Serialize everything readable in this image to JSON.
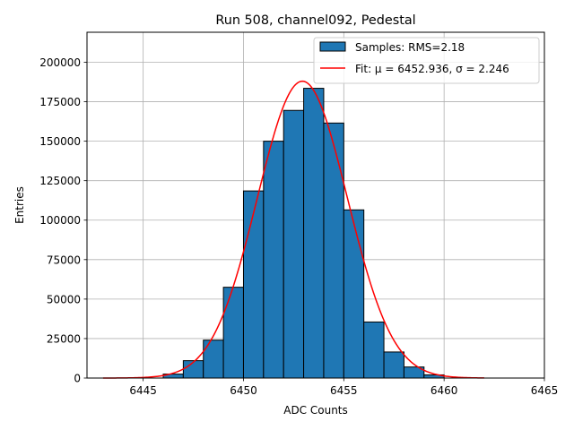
{
  "chart_data": {
    "type": "bar",
    "title": "Run 508, channel092, Pedestal",
    "xlabel": "ADC Counts",
    "ylabel": "Entries",
    "xlim": [
      6442.2,
      6465.0
    ],
    "ylim": [
      0,
      219000
    ],
    "xticks": [
      6445,
      6450,
      6455,
      6460,
      6465
    ],
    "xtick_labels": [
      "6445",
      "6450",
      "6455",
      "6460",
      "6465"
    ],
    "yticks": [
      0,
      25000,
      50000,
      75000,
      100000,
      125000,
      150000,
      175000,
      200000
    ],
    "ytick_labels": [
      "0",
      "25000",
      "50000",
      "75000",
      "100000",
      "125000",
      "150000",
      "175000",
      "200000"
    ],
    "grid": true,
    "legend_position": "top-right",
    "bar_color": "#1f77b4",
    "fit_color": "#ff0000",
    "series": [
      {
        "name": "Samples: RMS=2.18",
        "kind": "histogram",
        "bin_edges": [
          6443,
          6444,
          6445,
          6446,
          6447,
          6448,
          6449,
          6450,
          6451,
          6452,
          6453,
          6454,
          6455,
          6456,
          6457,
          6458,
          6459,
          6460,
          6461
        ],
        "counts": [
          0,
          0,
          0,
          2500,
          11000,
          24000,
          57500,
          118500,
          150000,
          169500,
          183500,
          161500,
          106500,
          35500,
          16500,
          7000,
          2000,
          0
        ]
      },
      {
        "name": "Fit: μ = 6452.936, σ = 2.246",
        "kind": "gaussian",
        "mu": 6452.936,
        "sigma": 2.246,
        "amplitude": 188000,
        "x_range": [
          6443,
          6462
        ]
      }
    ]
  }
}
